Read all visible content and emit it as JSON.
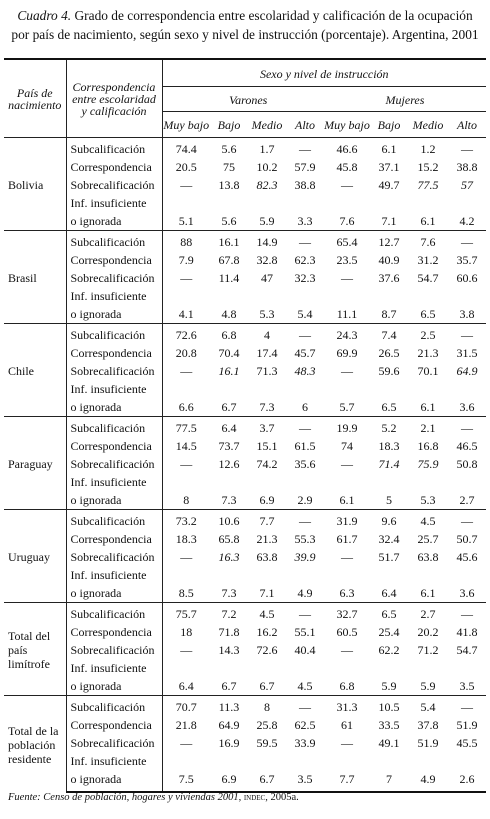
{
  "title": {
    "label": "Cuadro 4.",
    "text": "Grado de correspondencia entre escolaridad y calificación de la ocupación por país de nacimiento, según sexo y nivel de instrucción (porcentaje). Argentina, 2001"
  },
  "table": {
    "header": {
      "country": "País de nacimiento",
      "correspondence": "Correspondencia entre escolaridad y calificación",
      "group": "Sexo y nivel de instrucción",
      "sexes": [
        "Varones",
        "Mujeres"
      ],
      "levels": [
        "Muy bajo",
        "Bajo",
        "Medio",
        "Alto",
        "Muy bajo",
        "Bajo",
        "Medio",
        "Alto"
      ]
    },
    "row_labels": [
      "Subcalificación",
      "Correspondencia",
      "Sobrecalificación",
      "Inf. insuficiente o ignorada"
    ],
    "groups": [
      {
        "name": "Bolivia",
        "rows": [
          [
            74.4,
            5.6,
            1.7,
            "—",
            46.6,
            6.1,
            1.2,
            "—"
          ],
          [
            20.5,
            75,
            10.2,
            57.9,
            45.8,
            37.1,
            15.2,
            38.8
          ],
          [
            "—",
            13.8,
            82.3,
            38.8,
            "—",
            49.7,
            77.5,
            57
          ],
          [
            5.1,
            5.6,
            5.9,
            3.3,
            7.6,
            7.1,
            6.1,
            4.2
          ]
        ],
        "italic": [
          [
            2,
            2
          ],
          [
            2,
            6
          ],
          [
            2,
            7
          ]
        ]
      },
      {
        "name": "Brasil",
        "rows": [
          [
            88,
            16.1,
            14.9,
            "—",
            65.4,
            12.7,
            7.6,
            "—"
          ],
          [
            7.9,
            67.8,
            32.8,
            62.3,
            23.5,
            40.9,
            31.2,
            35.7
          ],
          [
            "—",
            11.4,
            47,
            32.3,
            "—",
            37.6,
            54.7,
            60.6
          ],
          [
            4.1,
            4.8,
            5.3,
            5.4,
            11.1,
            8.7,
            6.5,
            3.8
          ]
        ],
        "italic": []
      },
      {
        "name": "Chile",
        "rows": [
          [
            72.6,
            6.8,
            4,
            "—",
            24.3,
            7.4,
            2.5,
            "—"
          ],
          [
            20.8,
            70.4,
            17.4,
            45.7,
            69.9,
            26.5,
            21.3,
            31.5
          ],
          [
            "—",
            16.1,
            71.3,
            48.3,
            "—",
            59.6,
            70.1,
            64.9
          ],
          [
            6.6,
            6.7,
            7.3,
            6,
            5.7,
            6.5,
            6.1,
            3.6
          ]
        ],
        "italic": [
          [
            2,
            1
          ],
          [
            2,
            3
          ],
          [
            2,
            7
          ]
        ]
      },
      {
        "name": "Paraguay",
        "rows": [
          [
            77.5,
            6.4,
            3.7,
            "—",
            19.9,
            5.2,
            2.1,
            "—"
          ],
          [
            14.5,
            73.7,
            15.1,
            61.5,
            74,
            18.3,
            16.8,
            46.5
          ],
          [
            "—",
            12.6,
            74.2,
            35.6,
            "—",
            71.4,
            75.9,
            50.8
          ],
          [
            8,
            7.3,
            6.9,
            2.9,
            6.1,
            5,
            5.3,
            2.7
          ]
        ],
        "italic": [
          [
            2,
            5
          ],
          [
            2,
            6
          ]
        ]
      },
      {
        "name": "Uruguay",
        "rows": [
          [
            73.2,
            10.6,
            7.7,
            "—",
            31.9,
            9.6,
            4.5,
            "—"
          ],
          [
            18.3,
            65.8,
            21.3,
            55.3,
            61.7,
            32.4,
            25.7,
            50.7
          ],
          [
            "—",
            16.3,
            63.8,
            39.9,
            "—",
            51.7,
            63.8,
            45.6
          ],
          [
            8.5,
            7.3,
            7.1,
            4.9,
            6.3,
            6.4,
            6.1,
            3.6
          ]
        ],
        "italic": [
          [
            2,
            1
          ],
          [
            2,
            3
          ]
        ]
      },
      {
        "name": "Total del país limítrofe",
        "rows": [
          [
            75.7,
            7.2,
            4.5,
            "—",
            32.7,
            6.5,
            2.7,
            "—"
          ],
          [
            18,
            71.8,
            16.2,
            55.1,
            60.5,
            25.4,
            20.2,
            41.8
          ],
          [
            "—",
            14.3,
            72.6,
            40.4,
            "—",
            62.2,
            71.2,
            54.7
          ],
          [
            6.4,
            6.7,
            6.7,
            4.5,
            6.8,
            5.9,
            5.9,
            3.5
          ]
        ],
        "italic": []
      },
      {
        "name": "Total de la población residente",
        "rows": [
          [
            70.7,
            11.3,
            8,
            "—",
            31.3,
            10.5,
            5.4,
            "—"
          ],
          [
            21.8,
            64.9,
            25.8,
            62.5,
            61,
            33.5,
            37.8,
            51.9
          ],
          [
            "—",
            16.9,
            59.5,
            33.9,
            "—",
            49.1,
            51.9,
            45.5
          ],
          [
            7.5,
            6.9,
            6.7,
            3.5,
            7.7,
            7,
            4.9,
            2.6
          ]
        ],
        "italic": []
      }
    ]
  },
  "source": {
    "label": "Fuente:",
    "work": "Censo de población, hogares y viviendas 2001,",
    "org": "indec",
    "rest": ", 2005a."
  }
}
